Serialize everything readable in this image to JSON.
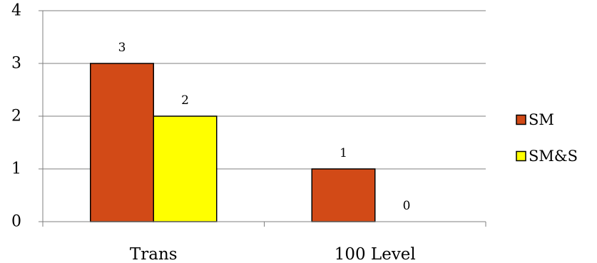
{
  "chart_data": {
    "type": "bar",
    "categories": [
      "Trans",
      "100 Level"
    ],
    "series": [
      {
        "name": "SM",
        "values": [
          3,
          1
        ],
        "color": "#D24A17"
      },
      {
        "name": "SM&S",
        "values": [
          2,
          0
        ],
        "color": "#FFFF00"
      }
    ],
    "ylim": [
      0,
      4
    ],
    "yticks": [
      0,
      1,
      2,
      3,
      4
    ],
    "grid": true,
    "legend": "right",
    "data_labels": true,
    "title": "",
    "xlabel": "",
    "ylabel": ""
  }
}
